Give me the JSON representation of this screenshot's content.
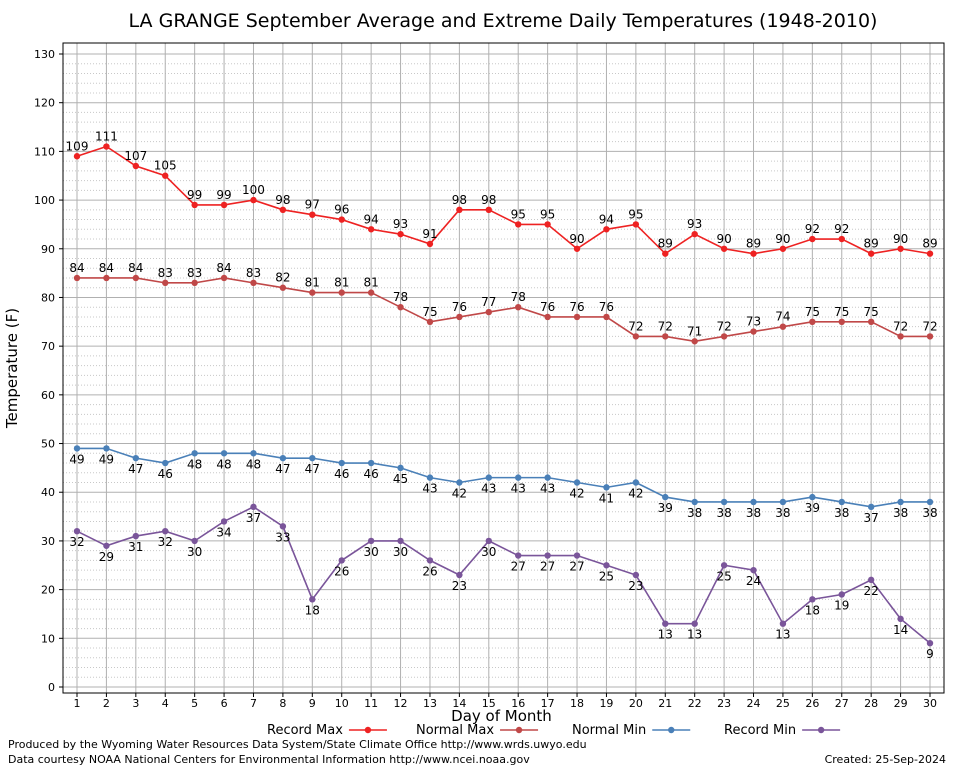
{
  "chart_data": {
    "type": "line",
    "title": "LA GRANGE September Average and Extreme Daily Temperatures (1948-2010)",
    "xlabel": "Day of Month",
    "ylabel": "Temperature (F)",
    "xlim": [
      1,
      30
    ],
    "ylim": [
      0,
      130
    ],
    "yticks": [
      0,
      10,
      20,
      30,
      40,
      50,
      60,
      70,
      80,
      90,
      100,
      110,
      120,
      130
    ],
    "x": [
      1,
      2,
      3,
      4,
      5,
      6,
      7,
      8,
      9,
      10,
      11,
      12,
      13,
      14,
      15,
      16,
      17,
      18,
      19,
      20,
      21,
      22,
      23,
      24,
      25,
      26,
      27,
      28,
      29,
      30
    ],
    "grid": true,
    "legend_position": "bottom",
    "series": [
      {
        "name": "Record Max",
        "color": "#ee2222",
        "values": [
          109,
          111,
          107,
          105,
          99,
          99,
          100,
          98,
          97,
          96,
          94,
          93,
          91,
          98,
          98,
          95,
          95,
          90,
          94,
          95,
          89,
          93,
          90,
          89,
          90,
          92,
          92,
          89,
          90,
          89
        ]
      },
      {
        "name": "Normal Max",
        "color": "#c04848",
        "values": [
          84,
          84,
          84,
          83,
          83,
          84,
          83,
          82,
          81,
          81,
          81,
          78,
          75,
          76,
          77,
          78,
          76,
          76,
          76,
          72,
          72,
          71,
          72,
          73,
          74,
          75,
          75,
          75,
          72,
          72
        ]
      },
      {
        "name": "Normal Min",
        "color": "#4a80b8",
        "values": [
          49,
          49,
          47,
          46,
          48,
          48,
          48,
          47,
          47,
          46,
          46,
          45,
          43,
          42,
          43,
          43,
          43,
          42,
          41,
          42,
          39,
          38,
          38,
          38,
          38,
          39,
          38,
          37,
          38,
          38
        ]
      },
      {
        "name": "Record Min",
        "color": "#7a559a",
        "values": [
          32,
          29,
          31,
          32,
          30,
          34,
          37,
          33,
          18,
          26,
          30,
          30,
          26,
          23,
          30,
          27,
          27,
          27,
          25,
          23,
          13,
          13,
          25,
          24,
          13,
          18,
          19,
          22,
          14,
          9
        ]
      }
    ]
  },
  "footer": {
    "credit_line_1": "Produced by the Wyoming Water Resources Data System/State Climate Office http://www.wrds.uwyo.edu",
    "credit_line_2": "Data courtesy NOAA National Centers for Environmental Information http://www.ncei.noaa.gov",
    "created": "Created:  25-Sep-2024"
  }
}
